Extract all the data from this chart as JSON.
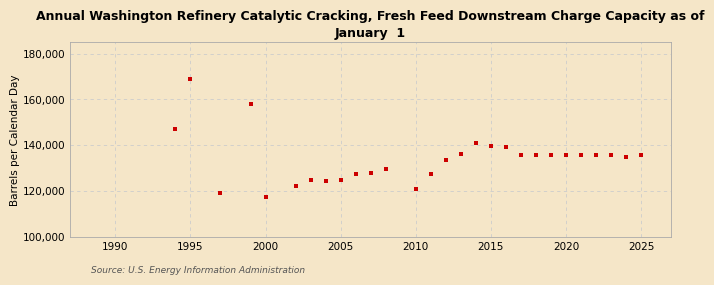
{
  "title": "Annual Washington Refinery Catalytic Cracking, Fresh Feed Downstream Charge Capacity as of\nJanuary  1",
  "ylabel": "Barrels per Calendar Day",
  "source": "Source: U.S. Energy Information Administration",
  "background_color": "#f5e6c8",
  "plot_bg_color": "#f5e6c8",
  "line_color": "#cc0000",
  "marker": "s",
  "markersize": 3.5,
  "years": [
    1994,
    1995,
    1997,
    1999,
    2000,
    2002,
    2003,
    2004,
    2005,
    2006,
    2007,
    2008,
    2010,
    2011,
    2012,
    2013,
    2014,
    2015,
    2016,
    2017,
    2018,
    2019,
    2020,
    2021,
    2022,
    2023,
    2024,
    2025
  ],
  "values": [
    147000,
    169000,
    119000,
    158000,
    117500,
    122000,
    125000,
    124500,
    125000,
    127500,
    128000,
    129500,
    121000,
    127500,
    133500,
    136000,
    141000,
    139500,
    139000,
    135500,
    135500,
    135500,
    135500,
    135500,
    135500,
    135500,
    135000,
    135500
  ],
  "xlim": [
    1987,
    2027
  ],
  "ylim": [
    100000,
    185000
  ],
  "yticks": [
    100000,
    120000,
    140000,
    160000,
    180000
  ],
  "ytick_labels": [
    "100,000",
    "120,000",
    "140,000",
    "160,000",
    "180,000"
  ],
  "xticks": [
    1990,
    1995,
    2000,
    2005,
    2010,
    2015,
    2020,
    2025
  ],
  "grid_color": "#cccccc",
  "title_fontsize": 9,
  "label_fontsize": 7.5,
  "tick_fontsize": 7.5,
  "source_fontsize": 6.5
}
